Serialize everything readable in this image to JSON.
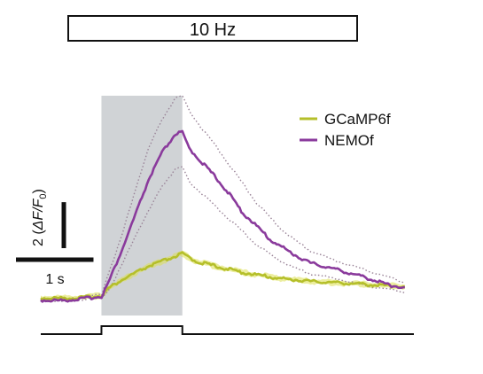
{
  "chart_data": {
    "type": "line",
    "title": "10 Hz",
    "xlabel": "",
    "ylabel": "",
    "grid": false,
    "legend_placement": "top-right",
    "x_units": "s",
    "xlim": [
      0,
      5.6
    ],
    "ylim": [
      -0.1,
      5.2
    ],
    "stimulus": {
      "start": 0.9,
      "end": 2.1
    },
    "scale_bar": {
      "y_value": 2,
      "y_label_prefix": "2 (",
      "y_label_symbol": "ΔF/F",
      "y_label_subscript": "0",
      "y_label_suffix": ")",
      "x_value": 1,
      "x_label": "1 s"
    },
    "colors": {
      "GCaMP6f": "#b5bf2a",
      "NEMOf": "#8a3a9c",
      "shade": "#d0d3d6",
      "band_gcamp": "#dde052",
      "band_nemo": "#9a8498"
    },
    "series": [
      {
        "name": "GCaMP6f",
        "x": [
          0,
          0.3,
          0.6,
          0.9,
          1.0,
          1.2,
          1.4,
          1.6,
          1.8,
          2.0,
          2.1,
          2.3,
          2.6,
          3.0,
          3.5,
          4.0,
          4.5,
          5.0,
          5.4
        ],
        "y": [
          0.02,
          0.02,
          0.03,
          0.08,
          0.25,
          0.45,
          0.62,
          0.78,
          0.9,
          1.02,
          1.08,
          0.9,
          0.78,
          0.63,
          0.5,
          0.42,
          0.38,
          0.33,
          0.3
        ],
        "band_halfwidth": 0.06
      },
      {
        "name": "NEMOf",
        "x": [
          0,
          0.3,
          0.6,
          0.9,
          1.0,
          1.2,
          1.4,
          1.6,
          1.8,
          2.0,
          2.1,
          2.2,
          2.4,
          2.6,
          2.8,
          3.0,
          3.2,
          3.4,
          3.6,
          3.8,
          4.0,
          4.4,
          4.8,
          5.2,
          5.4
        ],
        "y": [
          -0.03,
          -0.04,
          0.0,
          0.06,
          0.38,
          1.15,
          2.0,
          2.85,
          3.5,
          3.95,
          3.98,
          3.6,
          3.25,
          2.9,
          2.5,
          2.05,
          1.75,
          1.42,
          1.22,
          1.02,
          0.86,
          0.7,
          0.52,
          0.32,
          0.28
        ],
        "upper": [
          -0.01,
          -0.02,
          0.03,
          0.1,
          0.6,
          1.5,
          2.6,
          3.6,
          4.3,
          4.8,
          4.85,
          4.5,
          4.05,
          3.65,
          3.2,
          2.75,
          2.3,
          1.95,
          1.62,
          1.37,
          1.15,
          0.9,
          0.7,
          0.5,
          0.4
        ],
        "lower": [
          -0.05,
          -0.06,
          -0.02,
          0.03,
          0.2,
          0.8,
          1.5,
          2.1,
          2.7,
          3.1,
          3.15,
          2.8,
          2.5,
          2.2,
          1.9,
          1.6,
          1.3,
          1.07,
          0.87,
          0.72,
          0.6,
          0.48,
          0.32,
          0.22,
          0.17
        ]
      }
    ]
  }
}
